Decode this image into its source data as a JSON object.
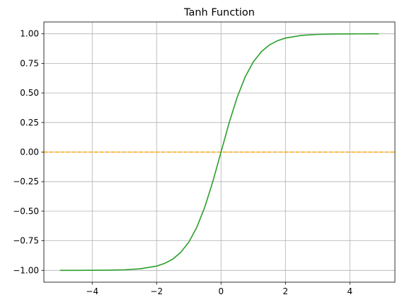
{
  "chart_data": {
    "type": "line",
    "title": "Tanh Function",
    "xlabel": "",
    "ylabel": "",
    "xlim": [
      -5.5,
      5.4
    ],
    "ylim": [
      -1.1,
      1.1
    ],
    "x_ticks": [
      -4,
      -2,
      0,
      2,
      4
    ],
    "x_tick_labels": [
      "−4",
      "−2",
      "0",
      "2",
      "4"
    ],
    "y_ticks": [
      -1.0,
      -0.75,
      -0.5,
      -0.25,
      0.0,
      0.25,
      0.5,
      0.75,
      1.0
    ],
    "y_tick_labels": [
      "−1.00",
      "−0.75",
      "−0.50",
      "−0.25",
      "0.00",
      "0.25",
      "0.50",
      "0.75",
      "1.00"
    ],
    "grid": true,
    "series": [
      {
        "color": "#2ca02c",
        "style": "solid",
        "x": [
          -5.0,
          -4.5,
          -4.0,
          -3.5,
          -3.0,
          -2.5,
          -2.0,
          -1.75,
          -1.5,
          -1.25,
          -1.0,
          -0.75,
          -0.5,
          -0.25,
          0.0,
          0.25,
          0.5,
          0.75,
          1.0,
          1.25,
          1.5,
          1.75,
          2.0,
          2.5,
          3.0,
          3.5,
          4.0,
          4.5,
          4.9
        ],
        "y": [
          -0.9999,
          -0.9998,
          -0.9993,
          -0.9982,
          -0.9951,
          -0.9866,
          -0.964,
          -0.9414,
          -0.9051,
          -0.8483,
          -0.7616,
          -0.6351,
          -0.4621,
          -0.2449,
          0.0,
          0.2449,
          0.4621,
          0.6351,
          0.7616,
          0.8483,
          0.9051,
          0.9414,
          0.964,
          0.9866,
          0.9951,
          0.9982,
          0.9993,
          0.9998,
          0.9999
        ]
      }
    ],
    "reference_lines": [
      {
        "axis": "y",
        "value": 0.0,
        "color": "#ffa500",
        "style": "dashed"
      }
    ]
  }
}
